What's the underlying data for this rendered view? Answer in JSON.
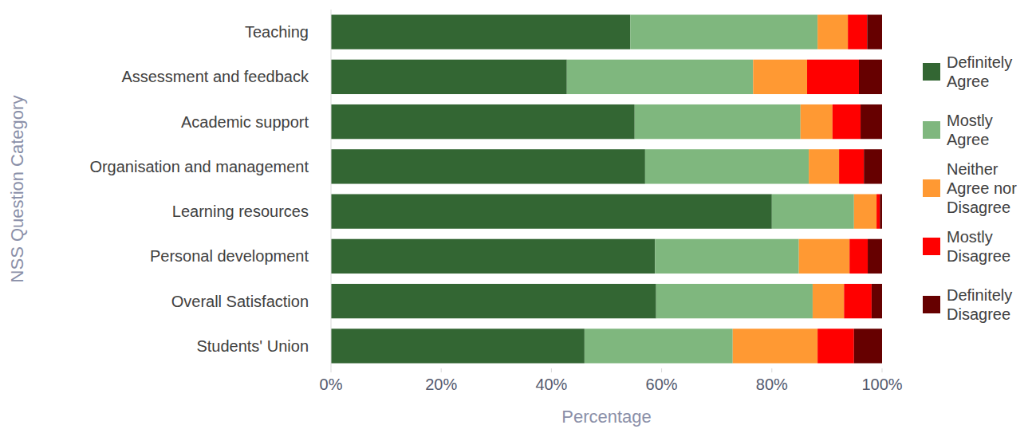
{
  "chart_data": {
    "type": "bar",
    "orientation": "horizontal",
    "stacked": true,
    "grid": false,
    "legend": "right",
    "x_label": "Percentage",
    "y_label": "NSS Question Category",
    "categories": [
      "Teaching",
      "Assessment and feedback",
      "Academic support",
      "Organisation and management",
      "Learning resources",
      "Personal development",
      "Overall Satisfaction",
      "Students' Union"
    ],
    "xlim": [
      0,
      100
    ],
    "xticks": [
      {
        "value": 0,
        "label": "0%"
      },
      {
        "value": 20,
        "label": "20%"
      },
      {
        "value": 40,
        "label": "40%"
      },
      {
        "value": 60,
        "label": "60%"
      },
      {
        "value": 80,
        "label": "80%"
      },
      {
        "value": 100,
        "label": "100%"
      }
    ],
    "series": [
      {
        "name": "Definitely Agree",
        "color": "#336633",
        "values": [
          54.3,
          42.8,
          55.1,
          57,
          80,
          58.8,
          59,
          46
        ]
      },
      {
        "name": "Mostly Agree",
        "color": "#7fb77e",
        "values": [
          34,
          33.8,
          30.1,
          29.7,
          14.9,
          26.1,
          28.4,
          26.9
        ]
      },
      {
        "name": "Neither Agree nor Disagree",
        "color": "#ff9933",
        "values": [
          5.5,
          9.8,
          5.8,
          5.5,
          4.1,
          9.2,
          5.7,
          15.4
        ]
      },
      {
        "name": "Mostly Disagree",
        "color": "#ff0000",
        "values": [
          3.5,
          9.4,
          5.1,
          4.5,
          0.6,
          3.3,
          5,
          6.6
        ]
      },
      {
        "name": "Definitely Disagree",
        "color": "#660000",
        "values": [
          2.7,
          4.2,
          3.9,
          3.3,
          0.4,
          2.6,
          1.9,
          5.1
        ]
      }
    ]
  }
}
